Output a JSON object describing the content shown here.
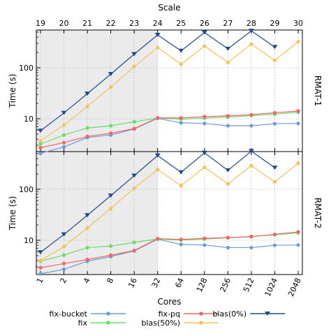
{
  "chart_data": [
    {
      "type": "line",
      "panel_label": "RMAT-1",
      "ylabel": "Time (s)",
      "yscale": "log",
      "y_ticks": [
        "10",
        "100"
      ],
      "top_axis_label": "Scale",
      "top_ticks": [
        "19",
        "20",
        "21",
        "22",
        "23",
        "24",
        "25",
        "26",
        "27",
        "28",
        "29",
        "30"
      ],
      "grid": true,
      "shaded_region": "cores 1 to 32",
      "series": [
        {
          "name": "fix-bucket",
          "color": "#6b9bd8",
          "marker": "circle",
          "values": [
            2.1,
            2.8,
            4.3,
            4.8,
            6.3,
            10.2,
            8.3,
            8.1,
            7.3,
            7.3,
            8.0,
            8.1
          ]
        },
        {
          "name": "fix",
          "color": "#66dd66",
          "marker": "circle",
          "values": [
            3.2,
            4.8,
            6.6,
            7.3,
            8.7,
            10.3,
            9.8,
            10.3,
            10.8,
            11.5,
            12.3,
            13.5
          ]
        },
        {
          "name": "fix-pq",
          "color": "#ee6666",
          "marker": "circle",
          "values": [
            2.7,
            3.4,
            4.5,
            5.2,
            6.4,
            10.4,
            10.4,
            11.0,
            11.4,
            12.0,
            13.1,
            14.2
          ]
        },
        {
          "name": "blas(50%)",
          "color": "#f3c25a",
          "marker": "circle",
          "values": [
            3.7,
            7.5,
            17.5,
            42,
            105,
            250,
            118,
            265,
            128,
            290,
            140,
            325
          ]
        },
        {
          "name": "blas(0%)",
          "color": "#1f4a8a",
          "marker": "triangle-down",
          "values": [
            5.8,
            13,
            31,
            75,
            185,
            440,
            215,
            490,
            235,
            530,
            255,
            null
          ]
        }
      ]
    },
    {
      "type": "line",
      "panel_label": "RMAT-2",
      "xlabel": "Cores",
      "ylabel": "Time (s)",
      "yscale": "log",
      "y_ticks": [
        "10",
        "100"
      ],
      "categories": [
        "1",
        "2",
        "4",
        "8",
        "16",
        "32",
        "64",
        "128",
        "256",
        "512",
        "1024",
        "2048"
      ],
      "grid": true,
      "shaded_region": "cores 1 to 32",
      "series": [
        {
          "name": "fix-bucket",
          "color": "#6b9bd8",
          "marker": "circle",
          "values": [
            2.2,
            2.7,
            3.9,
            4.8,
            6.2,
            10.5,
            8.3,
            8.1,
            7.2,
            7.2,
            8.0,
            8.1
          ]
        },
        {
          "name": "fix",
          "color": "#66dd66",
          "marker": "circle",
          "values": [
            3.9,
            5.1,
            7.2,
            7.7,
            9.1,
            10.6,
            10.1,
            10.6,
            11.2,
            11.9,
            12.8,
            14.0
          ]
        },
        {
          "name": "fix-pq",
          "color": "#ee6666",
          "marker": "circle",
          "values": [
            2.9,
            3.5,
            4.2,
            5.1,
            6.3,
            10.8,
            10.4,
            10.9,
            11.3,
            11.8,
            13.1,
            14.6
          ]
        },
        {
          "name": "blas(50%)",
          "color": "#f3c25a",
          "marker": "circle",
          "values": [
            4.0,
            7.5,
            17.5,
            42,
            105,
            245,
            118,
            270,
            128,
            290,
            140,
            325
          ]
        },
        {
          "name": "blas(0%)",
          "color": "#1f4a8a",
          "marker": "triangle-down",
          "values": [
            5.8,
            13,
            31,
            75,
            185,
            460,
            215,
            520,
            235,
            560,
            265,
            null
          ]
        }
      ]
    }
  ],
  "legend": {
    "placement": "bottom",
    "entries": [
      "fix-bucket",
      "fix",
      "fix-pq",
      "blas(50%)",
      "blas(0%)"
    ]
  }
}
